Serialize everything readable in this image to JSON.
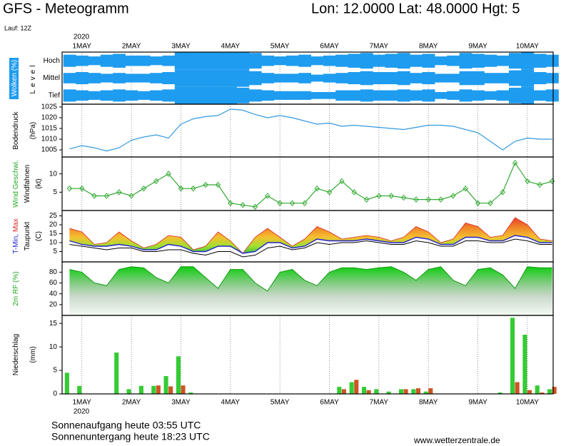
{
  "header": {
    "title": "GFS - Meteogramm",
    "location": "Lon: 12.0000 Lat: 48.0000 Hgt: 5",
    "run": "Lauf: 12Z"
  },
  "footer": {
    "sunrise": "Sonnenaufgang heute 03:55 UTC",
    "sunset": "Sonnenuntergang heute 18:23 UTC",
    "source": "www.wetterzentrale.de"
  },
  "time_axis": {
    "year": "2020",
    "xlim": [
      -0.4,
      9.52
    ],
    "xticks": [
      {
        "value": 0,
        "label": "1MAY"
      },
      {
        "value": 1,
        "label": "2MAY"
      },
      {
        "value": 2,
        "label": "3MAY"
      },
      {
        "value": 3,
        "label": "4MAY"
      },
      {
        "value": 4,
        "label": "5MAY"
      },
      {
        "value": 5,
        "label": "6MAY"
      },
      {
        "value": 6,
        "label": "7MAY"
      },
      {
        "value": 7,
        "label": "8MAY"
      },
      {
        "value": 8,
        "label": "9MAY"
      },
      {
        "value": 9,
        "label": "10MAY"
      }
    ],
    "x": [
      -0.25,
      0,
      0.25,
      0.5,
      0.75,
      1,
      1.25,
      1.5,
      1.75,
      2,
      2.25,
      2.5,
      2.75,
      3,
      3.25,
      3.5,
      3.75,
      4,
      4.25,
      4.5,
      4.75,
      5,
      5.25,
      5.5,
      5.75,
      6,
      6.25,
      6.5,
      6.75,
      7,
      7.25,
      7.5,
      7.75,
      8,
      8.25,
      8.5,
      8.75,
      9,
      9.25,
      9.5
    ]
  },
  "chart_data": [
    {
      "type": "band",
      "ylim": [
        0,
        100
      ],
      "ylabel": [
        [
          {
            "text": "Wolken (%)",
            "color": "#ffffff"
          }
        ],
        [
          {
            "text": "Level",
            "color": "#000000"
          }
        ]
      ],
      "series": [
        {
          "name": "Hoch",
          "color": "#1e9cf0",
          "values": [
            70,
            60,
            50,
            70,
            80,
            60,
            60,
            50,
            60,
            100,
            100,
            100,
            100,
            100,
            100,
            90,
            60,
            50,
            60,
            70,
            50,
            60,
            70,
            80,
            90,
            70,
            80,
            90,
            70,
            80,
            50,
            60,
            90,
            80,
            70,
            60,
            90,
            100,
            80,
            70
          ]
        },
        {
          "name": "Mittel",
          "color": "#1e9cf0",
          "values": [
            60,
            70,
            60,
            50,
            60,
            50,
            50,
            60,
            70,
            100,
            100,
            100,
            100,
            100,
            100,
            80,
            60,
            50,
            50,
            60,
            40,
            50,
            60,
            70,
            80,
            70,
            70,
            80,
            60,
            70,
            50,
            50,
            80,
            80,
            60,
            60,
            90,
            100,
            70,
            60
          ]
        },
        {
          "name": "Tief",
          "color": "#1e9cf0",
          "values": [
            70,
            60,
            50,
            60,
            70,
            60,
            50,
            60,
            70,
            100,
            100,
            100,
            100,
            100,
            90,
            70,
            60,
            50,
            50,
            50,
            40,
            40,
            60,
            60,
            70,
            60,
            60,
            70,
            60,
            70,
            40,
            50,
            70,
            60,
            50,
            60,
            90,
            100,
            60,
            70
          ]
        }
      ]
    },
    {
      "type": "line",
      "ylim": [
        1001.7,
        1026.3
      ],
      "yticks": [
        1005,
        1010,
        1015,
        1020,
        1025
      ],
      "ylabel": [
        [
          {
            "text": "Bodendruck",
            "color": "#000000"
          }
        ],
        [
          {
            "text": "(hPa)",
            "color": "#000000"
          }
        ]
      ],
      "series": [
        {
          "color": "#3399dd",
          "values": [
            1005.5,
            1007,
            1006,
            1004.5,
            1006,
            1009.5,
            1011,
            1012,
            1010.5,
            1017,
            1019.5,
            1020.5,
            1021,
            1024,
            1023.5,
            1021.5,
            1020,
            1021,
            1020,
            1018.5,
            1017,
            1017.5,
            1016,
            1016.5,
            1016,
            1015.5,
            1015,
            1014.5,
            1015.5,
            1016.5,
            1016.5,
            1016,
            1014.5,
            1013,
            1009,
            1005,
            1009,
            1010.5,
            1010,
            1010
          ]
        }
      ]
    },
    {
      "type": "line",
      "ylim": [
        0,
        14.6
      ],
      "yticks": [
        5,
        10
      ],
      "markers": true,
      "ylabel": [
        [
          {
            "text": "Wind Geschwi.",
            "color": "#22aa22"
          }
        ],
        [
          {
            "text": "Windfahnen",
            "color": "#000000"
          }
        ],
        [
          {
            "text": "(kt)",
            "color": "#000000"
          }
        ]
      ],
      "series": [
        {
          "color": "#33aa33",
          "values": [
            6,
            6,
            4,
            4,
            5,
            4,
            6,
            8,
            10,
            6,
            6,
            7,
            7,
            2,
            1.5,
            1,
            4,
            2,
            2,
            2,
            6,
            5,
            8,
            5,
            3,
            4,
            4,
            3.5,
            3,
            3,
            3,
            4,
            6,
            2,
            2,
            5,
            13,
            8,
            7,
            8
          ]
        }
      ]
    },
    {
      "type": "range",
      "ylim": [
        -0.8,
        28
      ],
      "yticks": [
        5,
        10,
        15,
        20,
        25
      ],
      "ylabel": [
        [
          {
            "text": "T-Min,",
            "color": "#2222cc"
          },
          {
            "text": " Max",
            "color": "#dd2222"
          }
        ],
        [
          {
            "text": "Taupunkt",
            "color": "#000000"
          }
        ],
        [
          {
            "text": "(C)",
            "color": "#000000"
          }
        ]
      ],
      "series": [
        {
          "color": "#2222cc",
          "values": [
            11,
            9,
            8,
            8,
            9,
            8,
            6,
            6,
            9,
            8,
            5,
            5,
            8,
            8,
            4,
            5,
            10,
            10,
            7,
            8,
            12,
            11,
            11,
            11,
            12,
            11,
            10,
            10,
            13,
            12,
            9,
            9,
            13,
            13,
            11,
            11,
            14,
            13,
            10,
            10
          ]
        },
        {
          "color": "#dd2222",
          "values": [
            18,
            16,
            9,
            10,
            16,
            11,
            7,
            9,
            14,
            13,
            6,
            8,
            16,
            11,
            4,
            13,
            18,
            13,
            8,
            12,
            19,
            16,
            12,
            13,
            14,
            13,
            11,
            13,
            19,
            16,
            10,
            12,
            21,
            19,
            13,
            14,
            24,
            20,
            12,
            11
          ]
        },
        {
          "color": "#000000",
          "values": [
            9,
            8,
            7,
            6,
            7,
            7,
            5,
            5,
            6,
            6,
            4,
            3,
            5,
            5,
            2,
            3,
            7,
            8,
            6,
            7,
            10,
            9,
            10,
            10,
            11,
            10,
            9,
            9,
            11,
            10,
            8,
            8,
            11,
            11,
            10,
            10,
            12,
            11,
            9,
            9
          ]
        }
      ]
    },
    {
      "type": "area",
      "ylim": [
        0,
        99
      ],
      "yticks": [
        20,
        40,
        60,
        80
      ],
      "ylabel": [
        [
          {
            "text": "2m RF (%)",
            "color": "#22aa22"
          }
        ]
      ],
      "series": [
        {
          "color": "#119911",
          "values": [
            85,
            80,
            60,
            55,
            85,
            90,
            88,
            70,
            60,
            90,
            90,
            70,
            50,
            85,
            85,
            60,
            45,
            80,
            85,
            65,
            55,
            80,
            88,
            88,
            85,
            88,
            90,
            80,
            65,
            85,
            90,
            65,
            55,
            85,
            88,
            75,
            50,
            90,
            88,
            88
          ]
        }
      ]
    },
    {
      "type": "bar",
      "ylim": [
        0,
        16.7
      ],
      "yticks": [
        0,
        5,
        10,
        15
      ],
      "ylabel": [
        [
          {
            "text": "Niederschlag",
            "color": "#000000"
          }
        ],
        [
          {
            "text": "(mm)",
            "color": "#000000"
          }
        ]
      ],
      "series": [
        {
          "color": "#33cc33",
          "values": [
            4.5,
            1.7,
            0,
            0,
            8.8,
            1,
            1.7,
            1.7,
            3.8,
            8,
            0.3,
            0,
            0,
            0,
            0,
            0,
            0,
            0,
            0,
            0,
            0,
            0,
            1.5,
            2.5,
            1.5,
            1,
            0.5,
            1,
            1,
            0.5,
            0,
            0,
            0,
            0,
            0,
            0.3,
            16.2,
            12.6,
            1.8,
            1
          ]
        },
        {
          "color": "#cc5522",
          "values": [
            0,
            0,
            0,
            0,
            0,
            0,
            0,
            1.8,
            1.6,
            1.8,
            0,
            0,
            0,
            0,
            0,
            0,
            0,
            0,
            0,
            0,
            0,
            0,
            1,
            3,
            0.8,
            0,
            0,
            1,
            1.2,
            1.2,
            0,
            0,
            0,
            0,
            0,
            0,
            2.5,
            0.8,
            0.3,
            1.5
          ]
        }
      ]
    }
  ]
}
